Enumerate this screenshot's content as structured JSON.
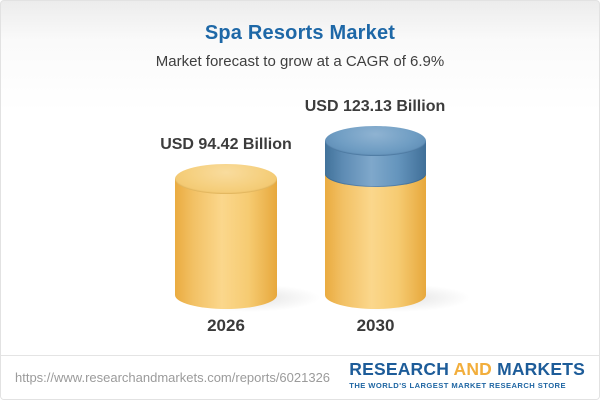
{
  "header": {
    "title": "Spa Resorts Market",
    "subtitle": "Market forecast to grow at a CAGR of 6.9%"
  },
  "chart_data": {
    "type": "bar",
    "bar_style": "3d-cylinder",
    "title": "Spa Resorts Market",
    "subtitle": "Market forecast to grow at a CAGR of 6.9%",
    "categories": [
      "2026",
      "2030"
    ],
    "values": [
      94.42,
      123.13
    ],
    "value_labels": [
      "USD 94.42 Billion",
      "USD 123.13 Billion"
    ],
    "unit": "USD Billion",
    "cagr_pct": 6.9,
    "ylim": [
      0,
      123.13
    ],
    "legend": "none",
    "grid": "off",
    "colors": {
      "bar_base": "#F5C96F",
      "bar_growth_segment": "#6F9DC4",
      "title": "#1E68A7",
      "label_text": "#3C3C3C"
    }
  },
  "footer": {
    "url": "https://www.researchandmarkets.com/reports/6021326",
    "logo": {
      "word_research": "RESEARCH",
      "word_and": "AND",
      "word_markets": "MARKETS",
      "tagline": "THE WORLD'S LARGEST MARKET RESEARCH STORE"
    }
  }
}
